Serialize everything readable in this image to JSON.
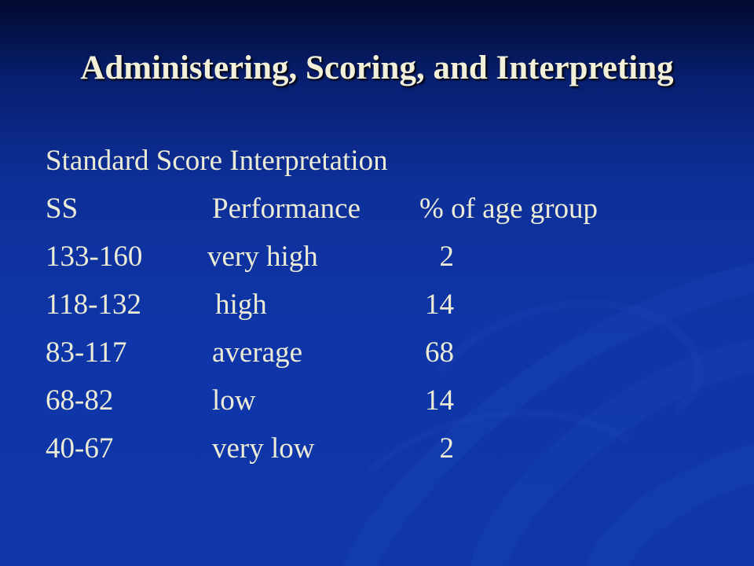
{
  "slide": {
    "title": "Administering, Scoring, and Interpreting",
    "subtitle": "Standard Score Interpretation",
    "table": {
      "headers": {
        "ss": "SS",
        "performance": "Performance",
        "percent": "% of age group"
      },
      "rows": [
        {
          "ss": "133-160",
          "performance": "very high",
          "percent": "2"
        },
        {
          "ss": "118-132",
          "performance": "high",
          "percent": "14"
        },
        {
          "ss": "83-117",
          "performance": "average",
          "percent": "68"
        },
        {
          "ss": "68-82",
          "performance": "low",
          "percent": "14"
        },
        {
          "ss": "40-67",
          "performance": "very low",
          "percent": "2"
        }
      ]
    }
  },
  "colors": {
    "background_top": "#020a2e",
    "background_main": "#0f36a8",
    "text": "#ecebd6",
    "title_text": "#f2f0d8"
  }
}
